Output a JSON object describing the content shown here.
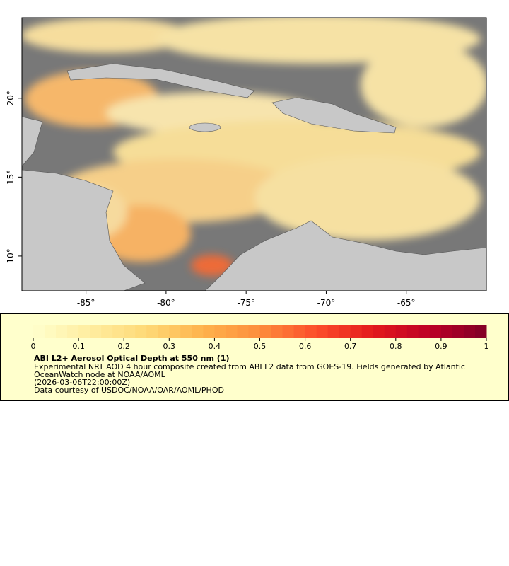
{
  "map": {
    "xlim": [
      -89,
      -60
    ],
    "ylim": [
      7.8,
      25.1
    ],
    "xticks": [
      {
        "value": -85,
        "label": "-85°"
      },
      {
        "value": -80,
        "label": "-80°"
      },
      {
        "value": -75,
        "label": "-75°"
      },
      {
        "value": -70,
        "label": "-70°"
      },
      {
        "value": -65,
        "label": "-65°"
      }
    ],
    "yticks": [
      {
        "value": 10,
        "label": "10°"
      },
      {
        "value": 15,
        "label": "15°"
      },
      {
        "value": 20,
        "label": "20°"
      }
    ]
  },
  "colorbar": {
    "lim": [
      0,
      1
    ],
    "ticks": [
      0,
      0.1,
      0.2,
      0.3,
      0.4,
      0.5,
      0.6,
      0.7,
      0.8,
      0.9,
      1
    ],
    "colors": [
      "#ffffcc",
      "#ffeda0",
      "#fed976",
      "#feb24c",
      "#fd8d3c",
      "#fc4e2a",
      "#e31a1c",
      "#bd0026",
      "#800026"
    ]
  },
  "legend": {
    "title": "ABI L2+ Aerosol Optical Depth at 550 nm (1)",
    "lines": [
      "Experimental NRT AOD 4 hour composite created from ABI L2 data from GOES-19. Fields generated by Atlantic",
      "OceanWatch node at NOAA/AOML",
      "(2026-03-06T22:00:00Z)",
      "Data courtesy of USDOC/NOAA/OAR/AOML/PHOD"
    ]
  }
}
